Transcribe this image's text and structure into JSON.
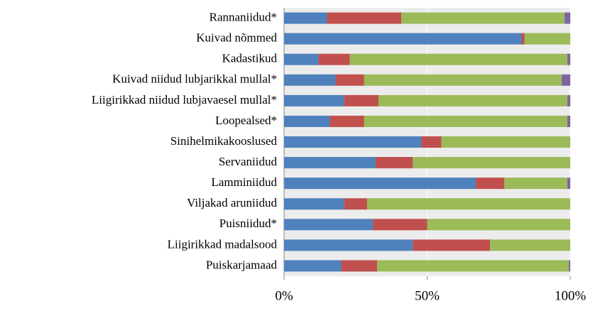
{
  "chart_data": {
    "type": "stacked-bar-horizontal",
    "categories": [
      "Rannaniidud*",
      "Kuivad nõmmed",
      "Kadastikud",
      "Kuivad niidud lubjarikkal mullal*",
      "Liigirikkad niidud lubjavaesel mullal*",
      "Loopealsed*",
      "Sinihelmikakooslused",
      "Servaniidud",
      "Lamminiidud",
      "Viljakad aruniidud",
      "Puisniidud*",
      "Liigirikkad madalsood",
      "Puiskarjamaad"
    ],
    "series": [
      {
        "color": "#4f81bd",
        "values": [
          15,
          83,
          12,
          18,
          21,
          16,
          48,
          32,
          67,
          21,
          31,
          45,
          20
        ]
      },
      {
        "color": "#c0504d",
        "values": [
          26,
          1,
          11,
          10,
          12,
          12,
          7,
          13,
          10,
          8,
          19,
          27,
          12.5
        ]
      },
      {
        "color": "#9bbb59",
        "values": [
          57,
          16,
          76,
          69,
          66,
          71,
          45,
          55,
          22,
          71,
          50,
          28,
          67
        ]
      },
      {
        "color": "#8064a2",
        "values": [
          2,
          0,
          1,
          3,
          1,
          1,
          0,
          0,
          1,
          0,
          0,
          0,
          0.5
        ]
      }
    ],
    "xlim": [
      0,
      100
    ],
    "xticks": [
      {
        "value": 0,
        "label": "0%"
      },
      {
        "value": 50,
        "label": "50%"
      },
      {
        "value": 100,
        "label": "100%"
      }
    ],
    "grid": true
  }
}
